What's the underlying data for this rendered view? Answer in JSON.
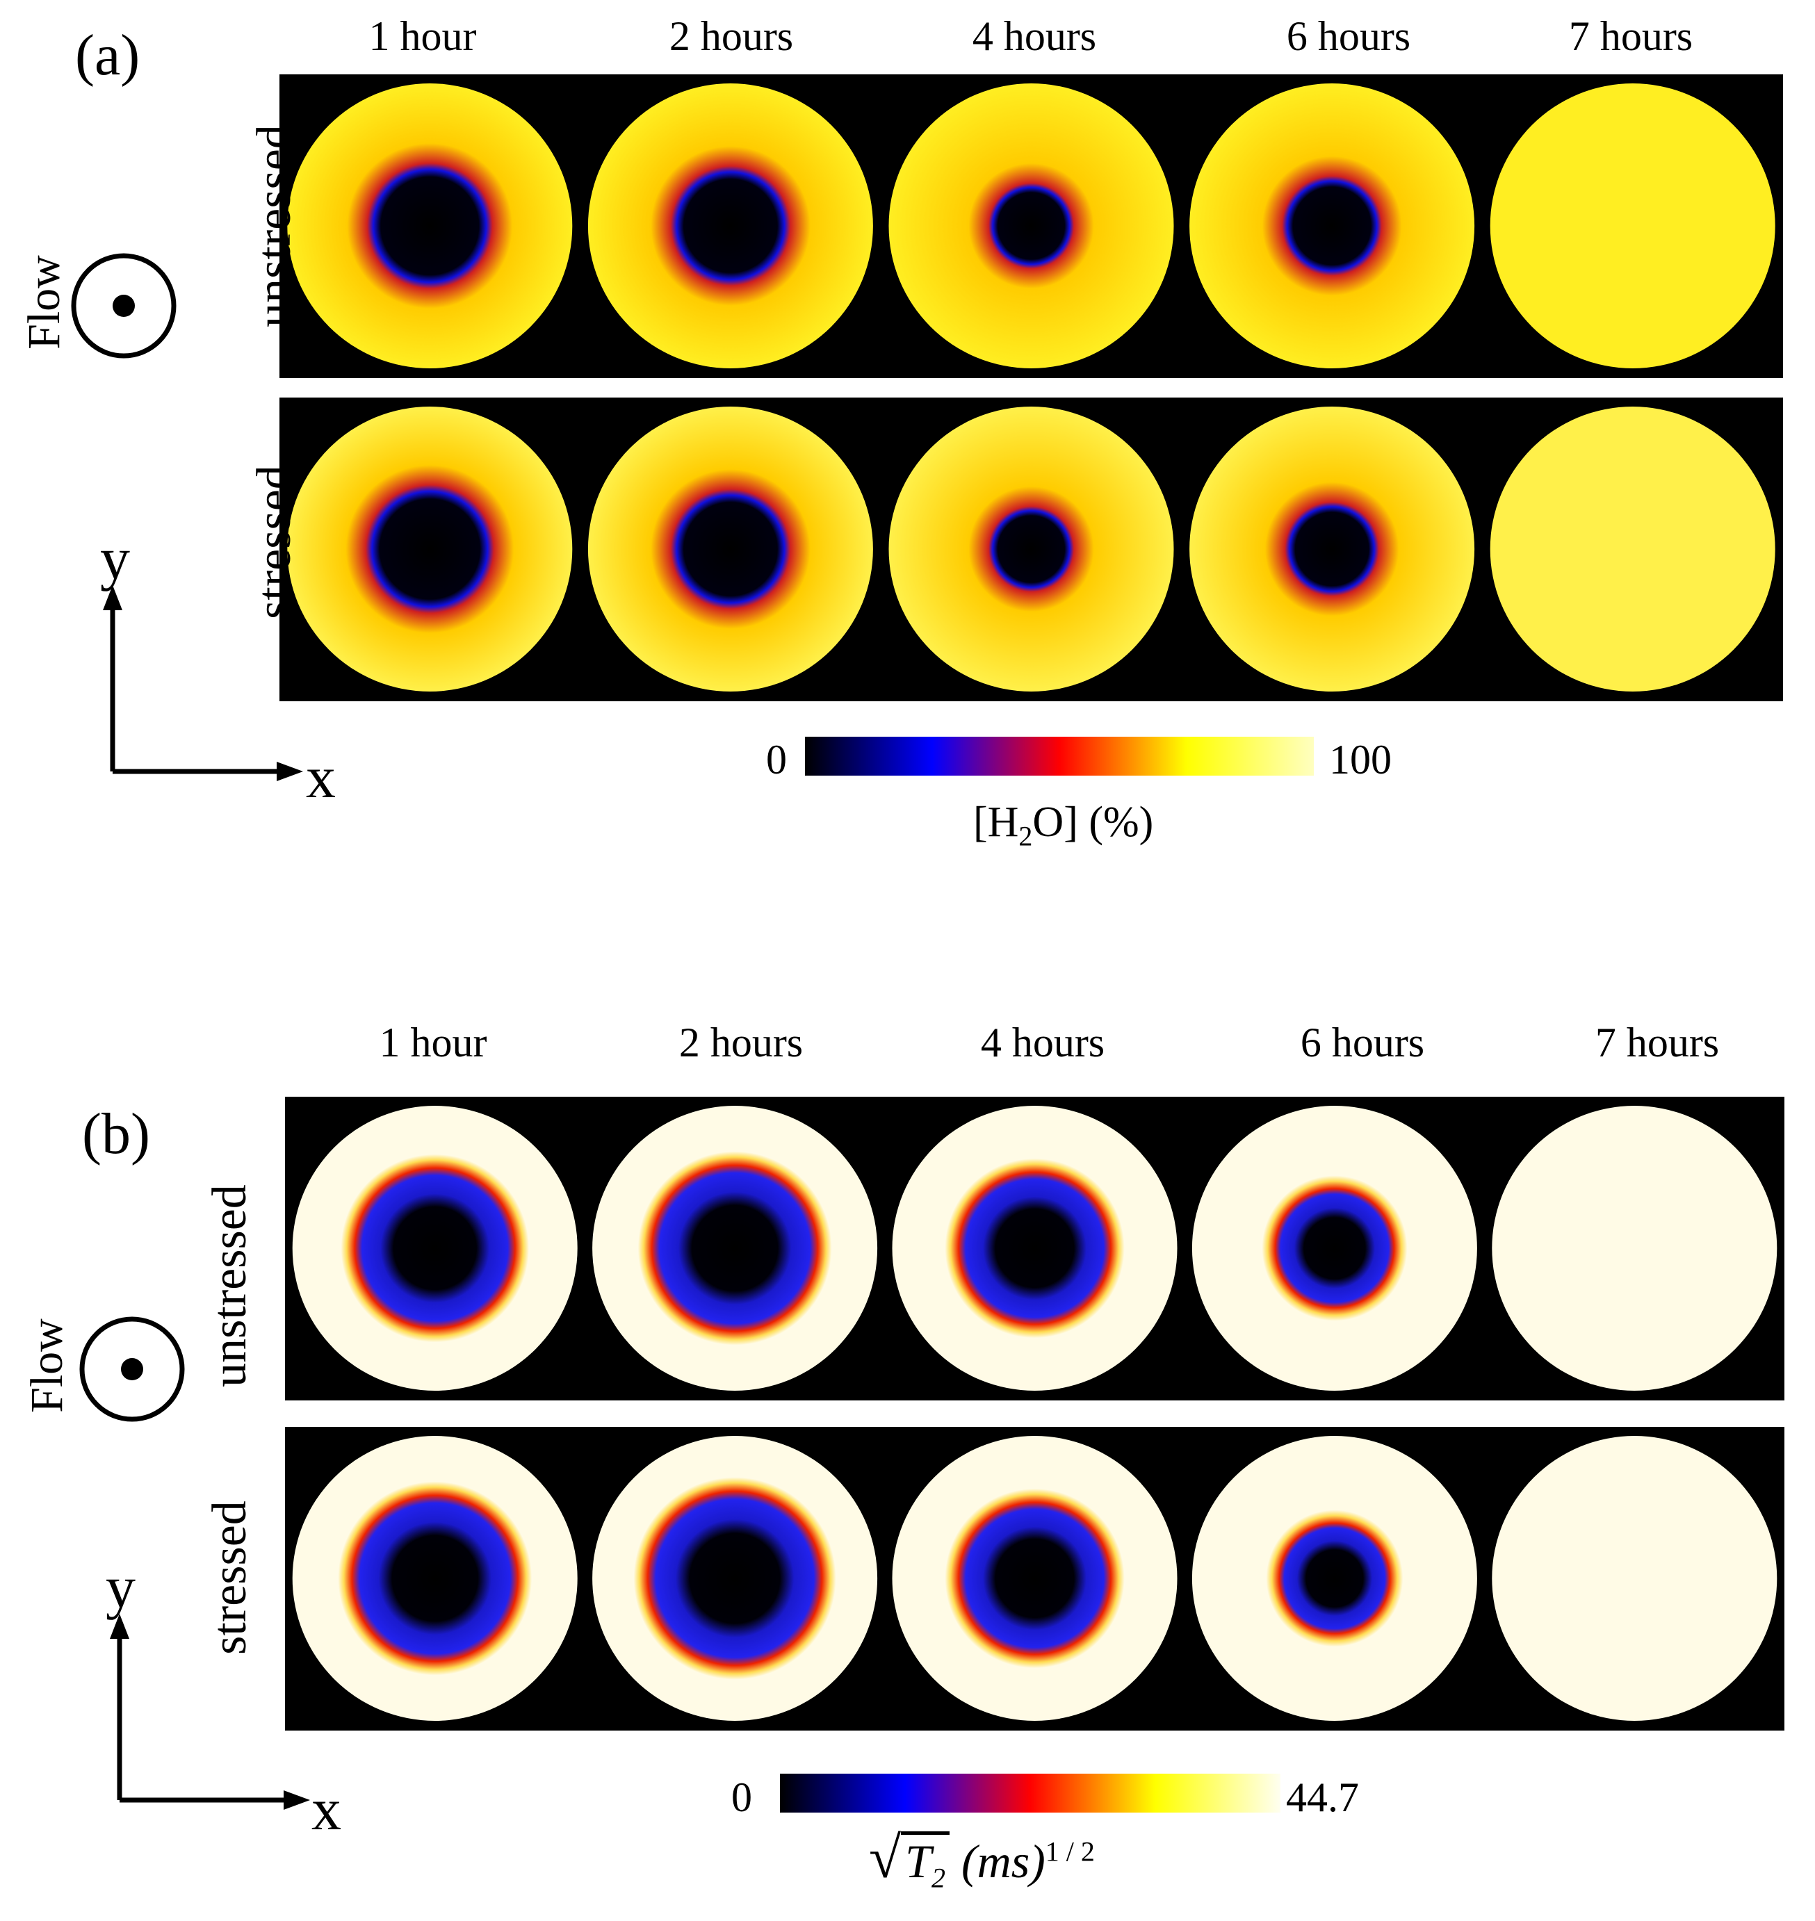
{
  "panel_a": {
    "label": "(a)",
    "times": [
      "1 hour",
      "2 hours",
      "4 hours",
      "6 hours",
      "7 hours"
    ],
    "rows": [
      "unstressed",
      "stressed"
    ],
    "flow_label": "Flow",
    "axis_x": "x",
    "axis_y": "y",
    "colorbar": {
      "min": "0",
      "max": "100",
      "title": "[H2O] (%)",
      "title_main": "[H",
      "title_sub": "2",
      "title_rest": "O] (%)",
      "stops": [
        "#000000",
        "#0000ff",
        "#ff0000",
        "#ffff00",
        "#ffffc0"
      ]
    },
    "inner_fraction": {
      "unstressed": [
        0.44,
        0.42,
        0.3,
        0.35,
        0.0
      ],
      "stressed": [
        0.45,
        0.42,
        0.3,
        0.33,
        0.0
      ]
    }
  },
  "panel_b": {
    "label": "(b)",
    "times": [
      "1 hour",
      "2 hours",
      "4 hours",
      "6 hours",
      "7 hours"
    ],
    "rows": [
      "unstressed",
      "stressed"
    ],
    "flow_label": "Flow",
    "axis_x": "x",
    "axis_y": "y",
    "colorbar": {
      "min": "0",
      "max": "44.7",
      "title": "√T2 (ms)^1/2",
      "title_sym": "T",
      "title_sub": "2",
      "title_unit": "(ms)",
      "title_exp": "1 / 2",
      "stops": [
        "#000000",
        "#0000ff",
        "#ff0000",
        "#ffff00",
        "#fffff0"
      ]
    },
    "inner_fraction": {
      "unstressed": [
        0.58,
        0.6,
        0.55,
        0.43,
        0.0
      ],
      "stressed": [
        0.6,
        0.63,
        0.55,
        0.4,
        0.0
      ]
    }
  }
}
